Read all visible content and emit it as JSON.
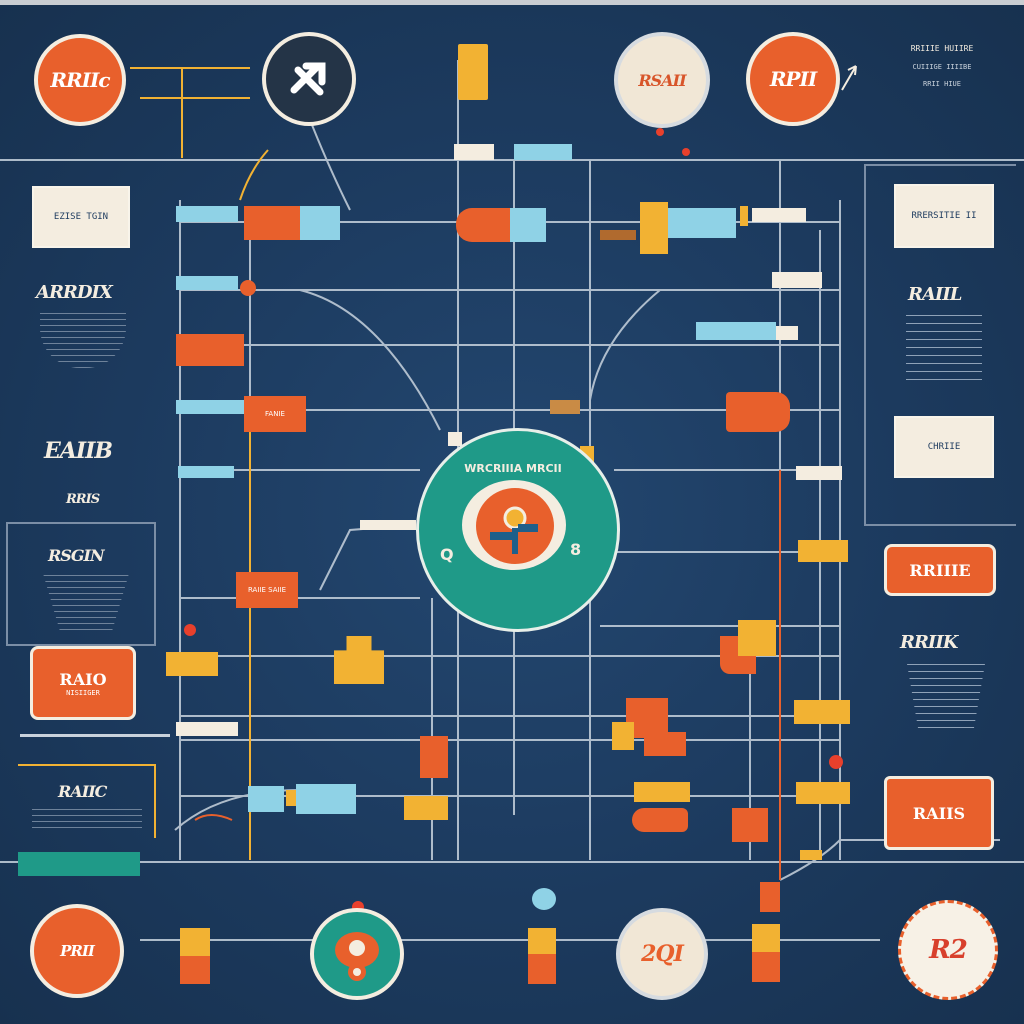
{
  "top_circles": [
    {
      "label": "RRIIc",
      "icon": "circle-badge"
    },
    {
      "label": "",
      "icon": "arrow-cross-icon"
    },
    {
      "label": "RSAII",
      "icon": "circle-badge"
    },
    {
      "label": "RPII",
      "icon": "circle-badge"
    }
  ],
  "bottom_circles": [
    {
      "label": "PRII",
      "icon": "circle-badge"
    },
    {
      "label": "",
      "icon": "gear-icon"
    },
    {
      "label": "2QI",
      "icon": "circle-badge"
    },
    {
      "label": "R2",
      "icon": "circle-badge"
    }
  ],
  "left_panel": {
    "card1": "EZISE TGIN",
    "heading1": "ARRDIX",
    "heading2": "EAIIB",
    "heading3": "RRIS",
    "heading4": "RSGIN",
    "orange_card": "RAIO",
    "orange_card_sub": "NISIIGER",
    "heading5": "RAIIC"
  },
  "right_panel": {
    "card1": "RRERSITIE II",
    "heading1": "RAIIL",
    "card2": "CHRIIE",
    "orange_card1": "RRIIIE",
    "heading2": "RRIIK",
    "orange_card2": "RAIIS"
  },
  "top_right_text": [
    "RRIIIE HUIIRE",
    "CUIIIGE IIIIBE",
    "RRII HIUE"
  ],
  "hub": {
    "top_label": "WRCRIIIA MRCII",
    "left_glyph": "Q",
    "right_glyph": "8"
  },
  "node_labels": {
    "left_mid": "FANIE",
    "left_lower": "RAIIE SAIIE"
  },
  "colors": {
    "background": "#1d3a5f",
    "orange": "#e8602c",
    "yellow": "#f2b233",
    "light_blue": "#8fd2e6",
    "cream": "#f4ede0",
    "teal": "#1f9a88"
  }
}
